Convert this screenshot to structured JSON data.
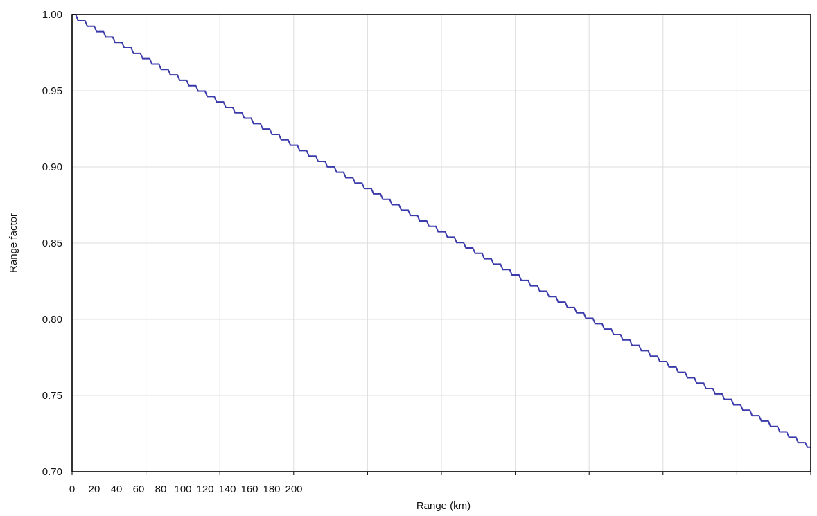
{
  "chart_data": {
    "type": "line",
    "title": "",
    "xlabel": "Range (km)",
    "ylabel": "Range factor",
    "xlim": [
      0,
      200
    ],
    "ylim": [
      0.7,
      1.0
    ],
    "grid": true,
    "legend": "none",
    "x_ticks": [
      "0",
      "20",
      "40",
      "60",
      "80",
      "100",
      "120",
      "140",
      "160",
      "180",
      "200"
    ],
    "y_ticks": [
      "0.70",
      "0.75",
      "0.80",
      "0.85",
      "0.90",
      "0.95",
      "1.00"
    ],
    "series": [
      {
        "color": "#3a3aaa",
        "step_width": 2.5,
        "x": [
          0,
          200
        ],
        "y": [
          1.0,
          0.716
        ]
      }
    ]
  }
}
